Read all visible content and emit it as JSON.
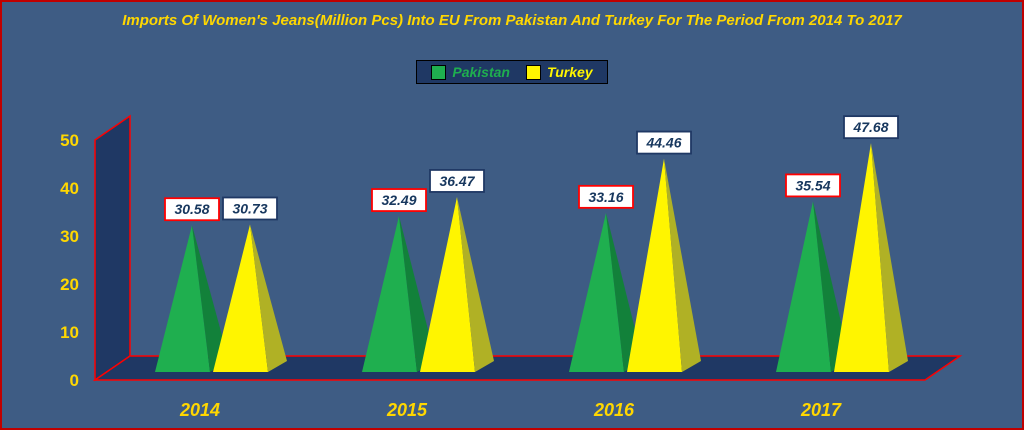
{
  "page": {
    "background": "#3E5C84",
    "border_color": "#C00000"
  },
  "title": {
    "text": "Imports Of Women's Jeans(Million Pcs) Into EU From Pakistan And Turkey For The Period From 2014 To 2017",
    "color": "#FFD700"
  },
  "legend": {
    "background": "#1F3864",
    "position": "top-center"
  },
  "chart_data": {
    "type": "bar",
    "subtype": "3d-pyramid",
    "title": "Imports Of Women's Jeans(Million Pcs) Into EU From Pakistan And Turkey For The Period From 2014 To 2017",
    "categories": [
      "2014",
      "2015",
      "2016",
      "2017"
    ],
    "series": [
      {
        "name": "Pakistan",
        "values": [
          30.58,
          32.49,
          33.16,
          35.54
        ],
        "color": "#1FAF4F",
        "side_color": "#12813A",
        "label_border": "#FF0000"
      },
      {
        "name": "Turkey",
        "values": [
          30.73,
          36.47,
          44.46,
          47.68
        ],
        "color": "#FFF500",
        "side_color": "#B0B125",
        "label_border": "#1F3864"
      }
    ],
    "xlabel": "",
    "ylabel": "",
    "ylim": [
      0,
      50
    ],
    "yticks": [
      0,
      10,
      20,
      30,
      40,
      50
    ],
    "grid": "off",
    "legend_position": "top-center",
    "wall_color": "#1F3864",
    "axis_line_color": "#FF0000",
    "tick_color": "#FFD700",
    "category_color": "#FFD700",
    "label_bg": "#FFFFFF",
    "label_text_color": "#17375E"
  }
}
